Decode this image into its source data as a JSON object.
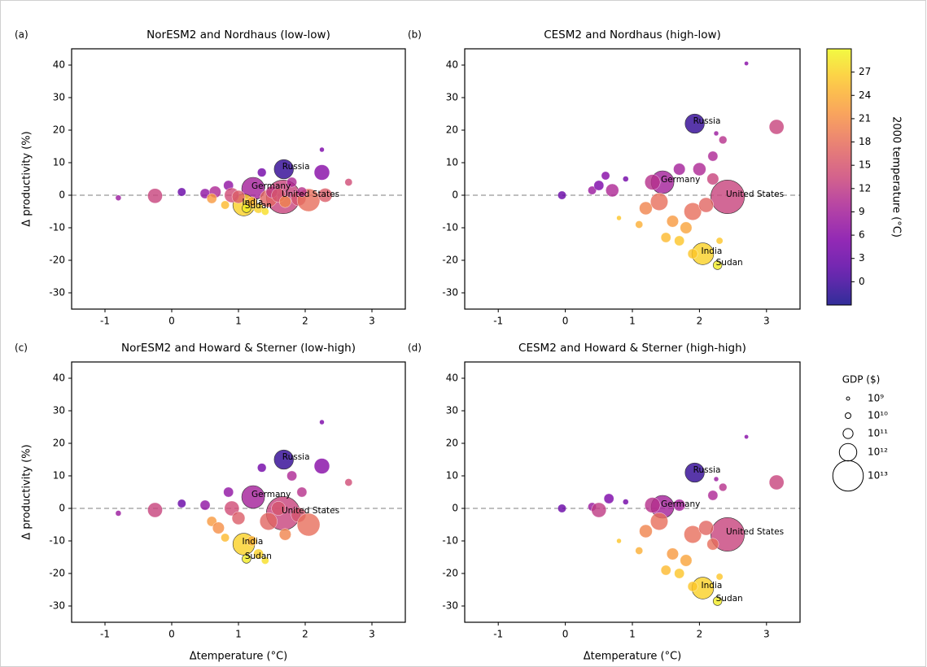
{
  "chart_data": [
    {
      "type": "scatter",
      "panel": "(a)",
      "title": "NorESM2 and Nordhaus (low-low)",
      "ylabel": "Δ productivity (%)",
      "xlim": [
        -1.5,
        3.5
      ],
      "ylim": [
        -35,
        45
      ],
      "xticks": [
        -1,
        0,
        1,
        2,
        3
      ],
      "yticks": [
        -30,
        -20,
        -10,
        0,
        10,
        20,
        30,
        40
      ],
      "reference_line": 0,
      "x": [
        1.68,
        1.22,
        1.67,
        1.08,
        1.12,
        -0.8,
        -0.25,
        0.15,
        0.5,
        0.65,
        0.85,
        0.9,
        1.0,
        1.35,
        1.45,
        1.5,
        1.6,
        1.8,
        1.9,
        2.05,
        2.25,
        2.25,
        2.65,
        2.3,
        0.8,
        1.3,
        1.4,
        0.6,
        1.7,
        1.2,
        1.95
      ],
      "y": [
        8,
        2,
        -0.5,
        -3,
        -4,
        -0.8,
        -0.2,
        1,
        0.5,
        1,
        3,
        0,
        -0.5,
        7,
        -1,
        1,
        0,
        4,
        -1,
        -1.5,
        7,
        14,
        4,
        0,
        -3,
        -4,
        -5,
        -1,
        -2,
        -2,
        1
      ],
      "gdp": [
        1500000000000.0,
        3000000000000.0,
        15000000000000.0,
        2500000000000.0,
        60000000000.0,
        10000000000.0,
        500000000000.0,
        50000000000.0,
        100000000000.0,
        200000000000.0,
        100000000000.0,
        500000000000.0,
        300000000000.0,
        60000000000.0,
        1000000000000.0,
        200000000000.0,
        400000000000.0,
        100000000000.0,
        500000000000.0,
        3000000000000.0,
        600000000000.0,
        5000000000.0,
        30000000000.0,
        400000000000.0,
        50000000000.0,
        100000000000.0,
        30000000000.0,
        100000000000.0,
        200000000000.0,
        100000000000.0,
        100000000000.0
      ],
      "temp": [
        -1,
        9,
        13,
        27,
        29,
        8,
        13,
        3,
        7,
        10,
        7,
        14,
        16,
        4,
        17,
        12,
        15,
        10,
        15,
        18,
        6,
        5,
        14,
        16,
        25,
        27,
        28,
        22,
        20,
        24,
        11
      ],
      "labels": [
        "Russia",
        "Germany",
        "United States",
        "India",
        "Sudan",
        null,
        null,
        null,
        null,
        null,
        null,
        null,
        null,
        null,
        null,
        null,
        null,
        null,
        null,
        null,
        null,
        null,
        null,
        null,
        null,
        null,
        null,
        null,
        null,
        null,
        null
      ]
    },
    {
      "type": "scatter",
      "panel": "(b)",
      "title": "CESM2 and Nordhaus (high-low)",
      "xlim": [
        -1.5,
        3.5
      ],
      "ylim": [
        -35,
        45
      ],
      "xticks": [
        -1,
        0,
        1,
        2,
        3
      ],
      "yticks": [
        -30,
        -20,
        -10,
        0,
        10,
        20,
        30,
        40
      ],
      "reference_line": 0,
      "x": [
        1.93,
        1.45,
        2.42,
        2.05,
        2.27,
        -0.05,
        0.4,
        0.5,
        0.6,
        0.7,
        0.9,
        1.2,
        1.4,
        1.3,
        1.6,
        1.5,
        1.7,
        1.8,
        1.9,
        2.1,
        2.2,
        2.25,
        2.35,
        2.7,
        3.15,
        2.2,
        2.3,
        1.9,
        1.1,
        0.8,
        1.7,
        2.0
      ],
      "y": [
        22,
        4,
        -0.5,
        -18,
        -21.5,
        0,
        1.5,
        3,
        6,
        1.5,
        5,
        -4,
        -2,
        4,
        -8,
        -13,
        -14,
        -10,
        -5,
        -3,
        12,
        19,
        17,
        40.5,
        21,
        5,
        -14,
        -18,
        -9,
        -7,
        8,
        8
      ],
      "gdp": [
        1500000000000.0,
        3000000000000.0,
        15000000000000.0,
        2500000000000.0,
        60000000000.0,
        50000000000.0,
        50000000000.0,
        100000000000.0,
        50000000000.0,
        300000000000.0,
        10000000000.0,
        300000000000.0,
        1000000000000.0,
        600000000000.0,
        200000000000.0,
        100000000000.0,
        100000000000.0,
        200000000000.0,
        1000000000000.0,
        500000000000.0,
        100000000000.0,
        5000000000.0,
        40000000000.0,
        3000000000.0,
        500000000000.0,
        200000000000.0,
        20000000000.0,
        100000000000.0,
        30000000000.0,
        5000000000.0,
        200000000000.0,
        300000000000.0
      ],
      "temp": [
        -1,
        9,
        13,
        27,
        29,
        3,
        8,
        5,
        6,
        10,
        4,
        20,
        18,
        11,
        22,
        25,
        26,
        23,
        18,
        17,
        10,
        8,
        11,
        6,
        13,
        13,
        26,
        26,
        24,
        26,
        9,
        10
      ],
      "labels": [
        "Russia",
        "Germany",
        "United States",
        "India",
        "Sudan",
        null,
        null,
        null,
        null,
        null,
        null,
        null,
        null,
        null,
        null,
        null,
        null,
        null,
        null,
        null,
        null,
        null,
        null,
        null,
        null,
        null,
        null,
        null,
        null,
        null,
        null,
        null
      ]
    },
    {
      "type": "scatter",
      "panel": "(c)",
      "title": "NorESM2 and Howard & Sterner (low-high)",
      "ylabel": "Δ productivity (%)",
      "xlabel": "Δtemperature (°C)",
      "xlim": [
        -1.5,
        3.5
      ],
      "ylim": [
        -35,
        45
      ],
      "xticks": [
        -1,
        0,
        1,
        2,
        3
      ],
      "yticks": [
        -30,
        -20,
        -10,
        0,
        10,
        20,
        30,
        40
      ],
      "reference_line": 0,
      "x": [
        1.68,
        1.22,
        1.67,
        1.08,
        1.12,
        -0.8,
        -0.25,
        0.15,
        0.5,
        0.85,
        0.9,
        1.0,
        1.35,
        1.45,
        1.6,
        1.8,
        1.9,
        2.05,
        2.25,
        2.25,
        2.65,
        0.8,
        1.3,
        1.4,
        0.6,
        1.7,
        1.2,
        1.95,
        0.7
      ],
      "y": [
        15,
        3.5,
        -1.5,
        -11,
        -15.5,
        -1.5,
        -0.5,
        1.5,
        1,
        5,
        0,
        -3,
        12.5,
        -4,
        0,
        10,
        -2,
        -5,
        13,
        26.5,
        8,
        -9,
        -14,
        -16,
        -4,
        -8,
        -10,
        5,
        -6
      ],
      "gdp": [
        1500000000000.0,
        3000000000000.0,
        15000000000000.0,
        2500000000000.0,
        60000000000.0,
        10000000000.0,
        500000000000.0,
        50000000000.0,
        100000000000.0,
        100000000000.0,
        500000000000.0,
        300000000000.0,
        60000000000.0,
        1000000000000.0,
        400000000000.0,
        100000000000.0,
        500000000000.0,
        3000000000000.0,
        600000000000.0,
        5000000000.0,
        30000000000.0,
        50000000000.0,
        100000000000.0,
        30000000000.0,
        100000000000.0,
        200000000000.0,
        100000000000.0,
        100000000000.0,
        200000000000.0
      ],
      "temp": [
        -1,
        9,
        13,
        27,
        29,
        8,
        13,
        3,
        7,
        7,
        14,
        16,
        4,
        17,
        15,
        10,
        15,
        18,
        6,
        5,
        14,
        25,
        27,
        28,
        22,
        20,
        24,
        11,
        21
      ],
      "labels": [
        "Russia",
        "Germany",
        "United States",
        "India",
        "Sudan",
        null,
        null,
        null,
        null,
        null,
        null,
        null,
        null,
        null,
        null,
        null,
        null,
        null,
        null,
        null,
        null,
        null,
        null,
        null,
        null,
        null,
        null,
        null,
        null
      ]
    },
    {
      "type": "scatter",
      "panel": "(d)",
      "title": "CESM2 and Howard & Sterner (high-high)",
      "xlabel": "Δtemperature (°C)",
      "xlim": [
        -1.5,
        3.5
      ],
      "ylim": [
        -35,
        45
      ],
      "xticks": [
        -1,
        0,
        1,
        2,
        3
      ],
      "yticks": [
        -30,
        -20,
        -10,
        0,
        10,
        20,
        30,
        40
      ],
      "reference_line": 0,
      "x": [
        1.93,
        1.45,
        2.42,
        2.05,
        2.27,
        -0.05,
        0.4,
        0.5,
        0.65,
        0.9,
        1.2,
        1.4,
        1.3,
        1.6,
        1.5,
        1.7,
        1.8,
        1.9,
        2.1,
        2.2,
        2.25,
        2.35,
        2.7,
        3.15,
        2.2,
        2.3,
        1.9,
        1.1,
        0.8,
        1.7
      ],
      "y": [
        11,
        0.5,
        -8,
        -24.5,
        -28.5,
        0,
        0.5,
        -0.5,
        3,
        2,
        -7,
        -4,
        1,
        -14,
        -19,
        -20,
        -16,
        -8,
        -6,
        4,
        9,
        6.5,
        22,
        8,
        -11,
        -21,
        -24,
        -13,
        -10,
        1
      ],
      "gdp": [
        1500000000000.0,
        3000000000000.0,
        15000000000000.0,
        2500000000000.0,
        60000000000.0,
        50000000000.0,
        50000000000.0,
        500000000000.0,
        100000000000.0,
        10000000000.0,
        300000000000.0,
        1000000000000.0,
        600000000000.0,
        200000000000.0,
        100000000000.0,
        100000000000.0,
        200000000000.0,
        1000000000000.0,
        500000000000.0,
        100000000000.0,
        5000000000.0,
        40000000000.0,
        3000000000.0,
        500000000000.0,
        200000000000.0,
        20000000000.0,
        100000000000.0,
        30000000000.0,
        5000000000.0,
        200000000000.0
      ],
      "temp": [
        -1,
        9,
        13,
        27,
        29,
        3,
        8,
        12,
        5,
        4,
        20,
        18,
        11,
        22,
        25,
        26,
        23,
        18,
        17,
        10,
        8,
        11,
        6,
        13,
        18,
        26,
        26,
        24,
        26,
        9
      ],
      "labels": [
        "Russia",
        "Germany",
        "United States",
        "India",
        "Sudan",
        null,
        null,
        null,
        null,
        null,
        null,
        null,
        null,
        null,
        null,
        null,
        null,
        null,
        null,
        null,
        null,
        null,
        null,
        null,
        null,
        null,
        null,
        null,
        null,
        null
      ]
    }
  ],
  "colorbar": {
    "label": "2000 temperature (°C)",
    "colormap": "plasma",
    "lim": [
      -3,
      30
    ],
    "ticks": [
      0,
      3,
      6,
      9,
      12,
      15,
      18,
      21,
      24,
      27
    ]
  },
  "size_legend": {
    "title": "GDP ($)",
    "entries": [
      {
        "value": 1000000000.0,
        "label": "10⁹"
      },
      {
        "value": 10000000000.0,
        "label": "10¹⁰"
      },
      {
        "value": 100000000000.0,
        "label": "10¹¹"
      },
      {
        "value": 1000000000000.0,
        "label": "10¹²"
      },
      {
        "value": 10000000000000.0,
        "label": "10¹³"
      }
    ]
  }
}
